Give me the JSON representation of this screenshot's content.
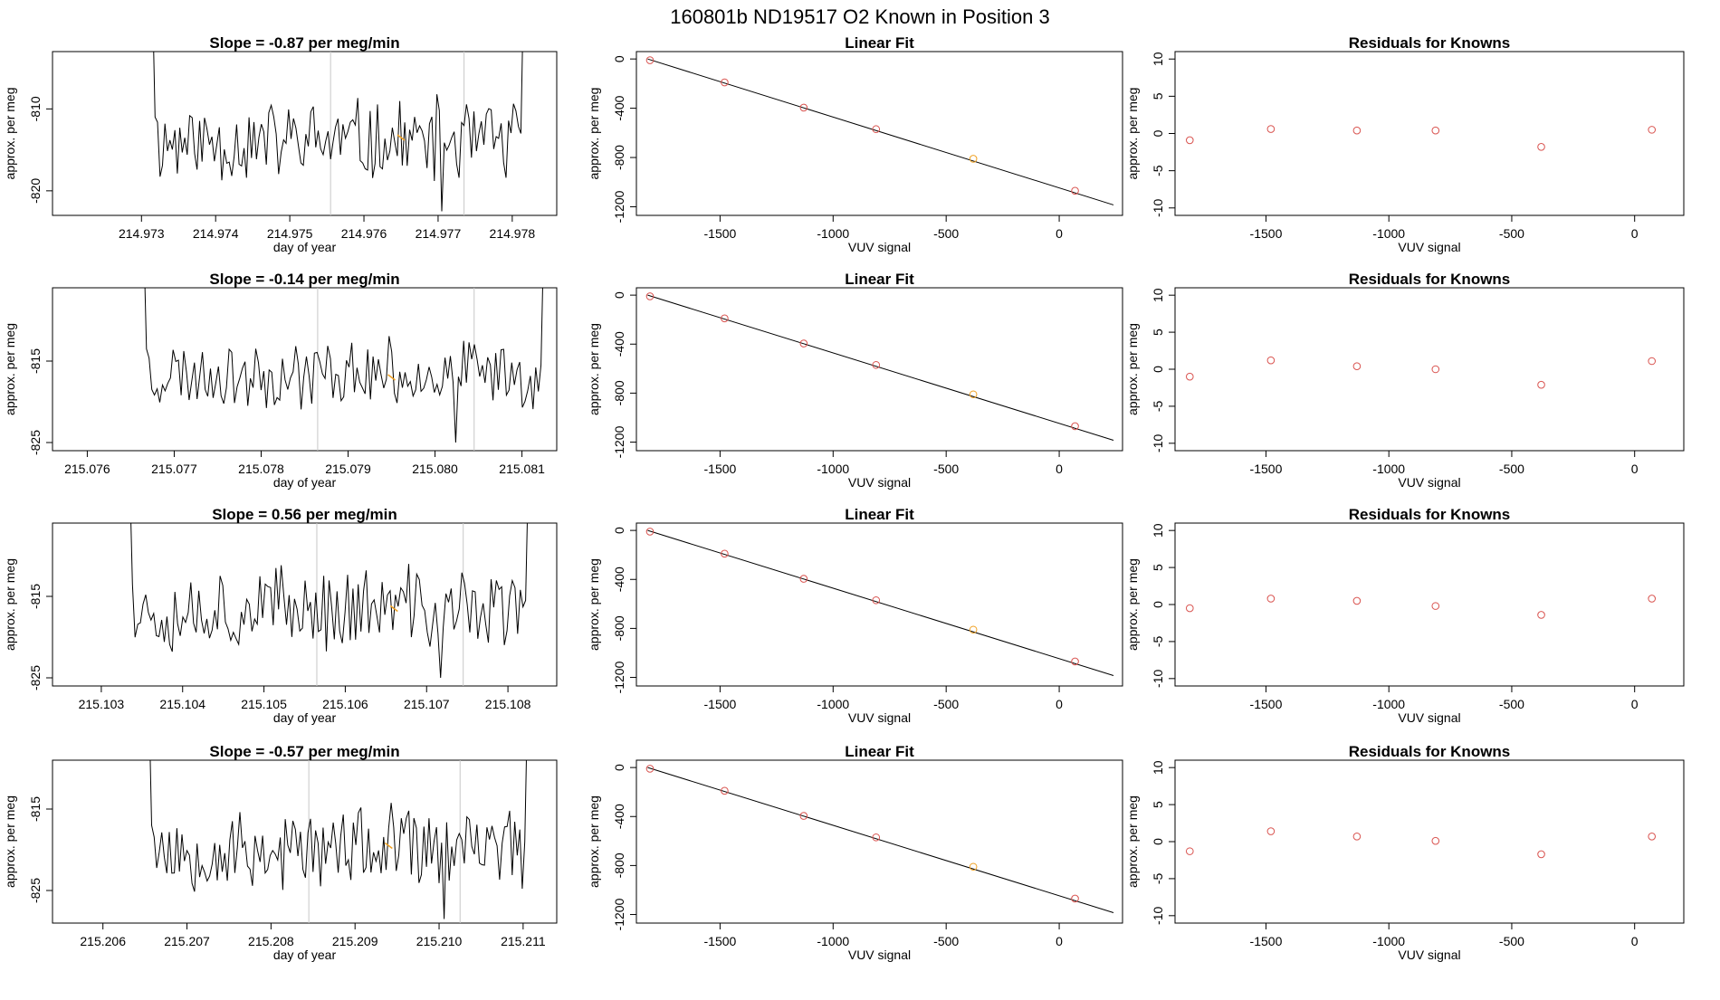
{
  "main_title": "160801b     ND19517   O2 Known in Position  3",
  "colors": {
    "line": "#000000",
    "point": "#d9534f",
    "highlight": "#f0a020",
    "vline": "#c8c8c8",
    "axis": "#000000"
  },
  "chart_data": [
    {
      "row": 1,
      "time_series": {
        "type": "line",
        "title": "Slope =  -0.87  per meg/min",
        "xlabel": "day of year",
        "ylabel": "approx. per meg",
        "xlim": [
          214.9718,
          214.9786
        ],
        "ylim": [
          -823,
          -803
        ],
        "x_ticks": [
          "214.973",
          "214.974",
          "214.975",
          "214.976",
          "214.977",
          "214.978"
        ],
        "x_tick_values": [
          214.973,
          214.974,
          214.975,
          214.976,
          214.977,
          214.978
        ],
        "y_ticks": [
          "-810",
          "-820"
        ],
        "y_tick_values": [
          -810,
          -820
        ],
        "vlines": [
          214.97555,
          214.97735
        ],
        "x_start": 214.97315,
        "x_end": 214.97815,
        "seed": 11,
        "base": -814,
        "noise": 5,
        "start_value": -797,
        "end_value": -797,
        "highlight_x": 214.9765,
        "highlight_y": -813.5
      },
      "linear_fit": {
        "type": "scatter",
        "title": "Linear Fit",
        "xlabel": "VUV signal",
        "ylabel": "approx. per meg",
        "xlim": [
          -1870,
          280
        ],
        "ylim": [
          -1270,
          60
        ],
        "x_ticks": [
          "-1500",
          "-1000",
          "-500",
          "0"
        ],
        "x_tick_values": [
          -1500,
          -1000,
          -500,
          0
        ],
        "y_ticks": [
          "0",
          "-400",
          "-800",
          "-1200"
        ],
        "y_tick_values": [
          0,
          -400,
          -800,
          -1200
        ],
        "points": [
          [
            -1810,
            -10
          ],
          [
            -1480,
            -190
          ],
          [
            -1130,
            -395
          ],
          [
            -810,
            -570
          ],
          [
            -380,
            -810
          ],
          [
            70,
            -1070
          ]
        ],
        "highlight_index": 4,
        "fit_line": {
          "x1": -1820,
          "y1": 0,
          "x2": 240,
          "y2": -1185
        }
      },
      "residuals": {
        "type": "scatter",
        "title": "Residuals for Knowns",
        "xlabel": "VUV signal",
        "ylabel": "approx. per meg",
        "xlim": [
          -1870,
          200
        ],
        "ylim": [
          -11,
          11
        ],
        "x_ticks": [
          "-1500",
          "-1000",
          "-500",
          "0"
        ],
        "x_tick_values": [
          -1500,
          -1000,
          -500,
          0
        ],
        "y_ticks": [
          "10",
          "5",
          "0",
          "-5",
          "-10"
        ],
        "y_tick_values": [
          10,
          5,
          0,
          -5,
          -10
        ],
        "points": [
          [
            -1810,
            -0.9
          ],
          [
            -1480,
            0.6
          ],
          [
            -1130,
            0.4
          ],
          [
            -810,
            0.4
          ],
          [
            -380,
            -1.8
          ],
          [
            70,
            0.5
          ]
        ]
      }
    },
    {
      "row": 2,
      "time_series": {
        "type": "line",
        "title": "Slope =  -0.14  per meg/min",
        "xlabel": "day of year",
        "ylabel": "approx. per meg",
        "xlim": [
          215.0756,
          215.0814
        ],
        "ylim": [
          -826,
          -806
        ],
        "x_ticks": [
          "215.076",
          "215.077",
          "215.078",
          "215.079",
          "215.080",
          "215.081"
        ],
        "x_tick_values": [
          215.076,
          215.077,
          215.078,
          215.079,
          215.08,
          215.081
        ],
        "y_ticks": [
          "-815",
          "-825"
        ],
        "y_tick_values": [
          -815,
          -825
        ],
        "vlines": [
          215.07865,
          215.08045
        ],
        "x_start": 215.07665,
        "x_end": 215.08125,
        "seed": 23,
        "base": -816.5,
        "noise": 4,
        "start_value": -800,
        "end_value": -800,
        "highlight_x": 215.0795,
        "highlight_y": -817
      },
      "linear_fit": {
        "type": "scatter",
        "title": "Linear Fit",
        "xlabel": "VUV signal",
        "ylabel": "approx. per meg",
        "xlim": [
          -1870,
          280
        ],
        "ylim": [
          -1270,
          60
        ],
        "x_ticks": [
          "-1500",
          "-1000",
          "-500",
          "0"
        ],
        "x_tick_values": [
          -1500,
          -1000,
          -500,
          0
        ],
        "y_ticks": [
          "0",
          "-400",
          "-800",
          "-1200"
        ],
        "y_tick_values": [
          0,
          -400,
          -800,
          -1200
        ],
        "points": [
          [
            -1810,
            -10
          ],
          [
            -1480,
            -190
          ],
          [
            -1130,
            -395
          ],
          [
            -810,
            -570
          ],
          [
            -380,
            -810
          ],
          [
            70,
            -1070
          ]
        ],
        "highlight_index": 4,
        "fit_line": {
          "x1": -1820,
          "y1": 0,
          "x2": 240,
          "y2": -1185
        }
      },
      "residuals": {
        "type": "scatter",
        "title": "Residuals for Knowns",
        "xlabel": "VUV signal",
        "ylabel": "approx. per meg",
        "xlim": [
          -1870,
          200
        ],
        "ylim": [
          -11,
          11
        ],
        "x_ticks": [
          "-1500",
          "-1000",
          "-500",
          "0"
        ],
        "x_tick_values": [
          -1500,
          -1000,
          -500,
          0
        ],
        "y_ticks": [
          "10",
          "5",
          "0",
          "-5",
          "-10"
        ],
        "y_tick_values": [
          10,
          5,
          0,
          -5,
          -10
        ],
        "points": [
          [
            -1810,
            -1.0
          ],
          [
            -1480,
            1.2
          ],
          [
            -1130,
            0.4
          ],
          [
            -810,
            0.0
          ],
          [
            -380,
            -2.1
          ],
          [
            70,
            1.1
          ]
        ]
      }
    },
    {
      "row": 3,
      "time_series": {
        "type": "line",
        "title": "Slope =  0.56  per meg/min",
        "xlabel": "day of year",
        "ylabel": "approx. per meg",
        "xlim": [
          215.1024,
          215.1086
        ],
        "ylim": [
          -826,
          -806
        ],
        "x_ticks": [
          "215.103",
          "215.104",
          "215.105",
          "215.106",
          "215.107",
          "215.108"
        ],
        "x_tick_values": [
          215.103,
          215.104,
          215.105,
          215.106,
          215.107,
          215.108
        ],
        "y_ticks": [
          "-815",
          "-825"
        ],
        "y_tick_values": [
          -815,
          -825
        ],
        "vlines": [
          215.10565,
          215.10745
        ],
        "x_start": 215.10335,
        "x_end": 215.10825,
        "seed": 37,
        "base": -816.5,
        "noise": 5,
        "start_value": -800,
        "end_value": -800,
        "highlight_x": 215.1066,
        "highlight_y": -816.5
      },
      "linear_fit": {
        "type": "scatter",
        "title": "Linear Fit",
        "xlabel": "VUV signal",
        "ylabel": "approx. per meg",
        "xlim": [
          -1870,
          280
        ],
        "ylim": [
          -1270,
          60
        ],
        "x_ticks": [
          "-1500",
          "-1000",
          "-500",
          "0"
        ],
        "x_tick_values": [
          -1500,
          -1000,
          -500,
          0
        ],
        "y_ticks": [
          "0",
          "-400",
          "-800",
          "-1200"
        ],
        "y_tick_values": [
          0,
          -400,
          -800,
          -1200
        ],
        "points": [
          [
            -1810,
            -10
          ],
          [
            -1480,
            -190
          ],
          [
            -1130,
            -395
          ],
          [
            -810,
            -570
          ],
          [
            -380,
            -810
          ],
          [
            70,
            -1070
          ]
        ],
        "highlight_index": 4,
        "fit_line": {
          "x1": -1820,
          "y1": 0,
          "x2": 240,
          "y2": -1185
        }
      },
      "residuals": {
        "type": "scatter",
        "title": "Residuals for Knowns",
        "xlabel": "VUV signal",
        "ylabel": "approx. per meg",
        "xlim": [
          -1870,
          200
        ],
        "ylim": [
          -11,
          11
        ],
        "x_ticks": [
          "-1500",
          "-1000",
          "-500",
          "0"
        ],
        "x_tick_values": [
          -1500,
          -1000,
          -500,
          0
        ],
        "y_ticks": [
          "10",
          "5",
          "0",
          "-5",
          "-10"
        ],
        "y_tick_values": [
          10,
          5,
          0,
          -5,
          -10
        ],
        "points": [
          [
            -1810,
            -0.5
          ],
          [
            -1480,
            0.8
          ],
          [
            -1130,
            0.5
          ],
          [
            -810,
            -0.2
          ],
          [
            -380,
            -1.4
          ],
          [
            70,
            0.8
          ]
        ]
      }
    },
    {
      "row": 4,
      "time_series": {
        "type": "line",
        "title": "Slope =  -0.57  per meg/min",
        "xlabel": "day of year",
        "ylabel": "approx. per meg",
        "xlim": [
          215.2054,
          215.2114
        ],
        "ylim": [
          -829,
          -809
        ],
        "x_ticks": [
          "215.206",
          "215.207",
          "215.208",
          "215.209",
          "215.210",
          "215.211"
        ],
        "x_tick_values": [
          215.206,
          215.207,
          215.208,
          215.209,
          215.21,
          215.211
        ],
        "y_ticks": [
          "-815",
          "-825"
        ],
        "y_tick_values": [
          -815,
          -825
        ],
        "vlines": [
          215.20845,
          215.21025
        ],
        "x_start": 215.20655,
        "x_end": 215.21105,
        "seed": 53,
        "base": -820,
        "noise": 5,
        "start_value": -803,
        "end_value": -803,
        "highlight_x": 215.2094,
        "highlight_y": -819.5
      },
      "linear_fit": {
        "type": "scatter",
        "title": "Linear Fit",
        "xlabel": "VUV signal",
        "ylabel": "approx. per meg",
        "xlim": [
          -1870,
          280
        ],
        "ylim": [
          -1270,
          60
        ],
        "x_ticks": [
          "-1500",
          "-1000",
          "-500",
          "0"
        ],
        "x_tick_values": [
          -1500,
          -1000,
          -500,
          0
        ],
        "y_ticks": [
          "0",
          "-400",
          "-800",
          "-1200"
        ],
        "y_tick_values": [
          0,
          -400,
          -800,
          -1200
        ],
        "points": [
          [
            -1810,
            -10
          ],
          [
            -1480,
            -190
          ],
          [
            -1130,
            -395
          ],
          [
            -810,
            -570
          ],
          [
            -380,
            -810
          ],
          [
            70,
            -1070
          ]
        ],
        "highlight_index": 4,
        "fit_line": {
          "x1": -1820,
          "y1": 0,
          "x2": 240,
          "y2": -1185
        }
      },
      "residuals": {
        "type": "scatter",
        "title": "Residuals for Knowns",
        "xlabel": "VUV signal",
        "ylabel": "approx. per meg",
        "xlim": [
          -1870,
          200
        ],
        "ylim": [
          -11,
          11
        ],
        "x_ticks": [
          "-1500",
          "-1000",
          "-500",
          "0"
        ],
        "x_tick_values": [
          -1500,
          -1000,
          -500,
          0
        ],
        "y_ticks": [
          "10",
          "5",
          "0",
          "-5",
          "-10"
        ],
        "y_tick_values": [
          10,
          5,
          0,
          -5,
          -10
        ],
        "points": [
          [
            -1810,
            -1.3
          ],
          [
            -1480,
            1.4
          ],
          [
            -1130,
            0.7
          ],
          [
            -810,
            0.1
          ],
          [
            -380,
            -1.7
          ],
          [
            70,
            0.7
          ]
        ]
      }
    }
  ]
}
